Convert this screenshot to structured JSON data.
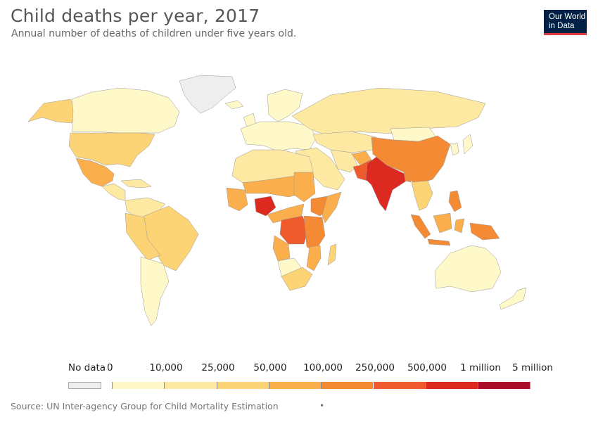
{
  "title": "Child deaths per year, 2017",
  "subtitle": "Annual number of deaths of children under five years old.",
  "logo": {
    "line1": "Our World",
    "line2": "in Data",
    "bg": "#002147",
    "accent": "#dc3b3b"
  },
  "legend": {
    "no_data": {
      "label": "No data",
      "color": "#eeeeee"
    },
    "ticks": [
      "0",
      "10,000",
      "25,000",
      "50,000",
      "100,000",
      "250,000",
      "500,000",
      "1 million",
      "5 million"
    ],
    "colors": [
      "#fff8c8",
      "#fde9a2",
      "#fcd375",
      "#faaf4c",
      "#f58a35",
      "#ee5a2b",
      "#dc2a21",
      "#a90d2a"
    ]
  },
  "source": "Source: UN Inter-agency Group for Child Mortality Estimation",
  "footer_dot": "•",
  "map_regions": [
    {
      "name": "greenland",
      "bucket": -1
    },
    {
      "name": "alaska",
      "bucket": 2
    },
    {
      "name": "canada",
      "bucket": 0
    },
    {
      "name": "usa",
      "bucket": 2
    },
    {
      "name": "mexico",
      "bucket": 3
    },
    {
      "name": "central-america",
      "bucket": 1
    },
    {
      "name": "caribbean",
      "bucket": 1
    },
    {
      "name": "colombia-venezuela",
      "bucket": 1
    },
    {
      "name": "brazil",
      "bucket": 2
    },
    {
      "name": "peru-bolivia",
      "bucket": 2
    },
    {
      "name": "southern-cone",
      "bucket": 0
    },
    {
      "name": "iceland",
      "bucket": 0
    },
    {
      "name": "scandinavia",
      "bucket": 0
    },
    {
      "name": "europe",
      "bucket": 0
    },
    {
      "name": "uk-ireland",
      "bucket": 0
    },
    {
      "name": "russia",
      "bucket": 1
    },
    {
      "name": "central-asia",
      "bucket": 1
    },
    {
      "name": "middle-east",
      "bucket": 1
    },
    {
      "name": "iran",
      "bucket": 1
    },
    {
      "name": "afghanistan",
      "bucket": 3
    },
    {
      "name": "pakistan",
      "bucket": 5
    },
    {
      "name": "india",
      "bucket": 6
    },
    {
      "name": "bangladesh",
      "bucket": 4
    },
    {
      "name": "china",
      "bucket": 4
    },
    {
      "name": "mongolia",
      "bucket": 0
    },
    {
      "name": "korea-japan",
      "bucket": 0
    },
    {
      "name": "southeast-asia",
      "bucket": 2
    },
    {
      "name": "philippines",
      "bucket": 4
    },
    {
      "name": "sumatra",
      "bucket": 4
    },
    {
      "name": "java",
      "bucket": 4
    },
    {
      "name": "borneo",
      "bucket": 3
    },
    {
      "name": "sulawesi",
      "bucket": 3
    },
    {
      "name": "new-guinea",
      "bucket": 4
    },
    {
      "name": "australia",
      "bucket": 0
    },
    {
      "name": "new-zealand",
      "bucket": 0
    },
    {
      "name": "north-africa",
      "bucket": 1
    },
    {
      "name": "sahel",
      "bucket": 3
    },
    {
      "name": "west-africa",
      "bucket": 3
    },
    {
      "name": "nigeria",
      "bucket": 6
    },
    {
      "name": "sudan",
      "bucket": 3
    },
    {
      "name": "ethiopia",
      "bucket": 4
    },
    {
      "name": "somalia",
      "bucket": 3
    },
    {
      "name": "central-africa",
      "bucket": 3
    },
    {
      "name": "dr-congo",
      "bucket": 5
    },
    {
      "name": "east-africa",
      "bucket": 4
    },
    {
      "name": "angola",
      "bucket": 3
    },
    {
      "name": "southern-africa",
      "bucket": 2
    },
    {
      "name": "namibia-botswana",
      "bucket": 0
    },
    {
      "name": "mozambique",
      "bucket": 3
    },
    {
      "name": "madagascar",
      "bucket": 2
    }
  ]
}
